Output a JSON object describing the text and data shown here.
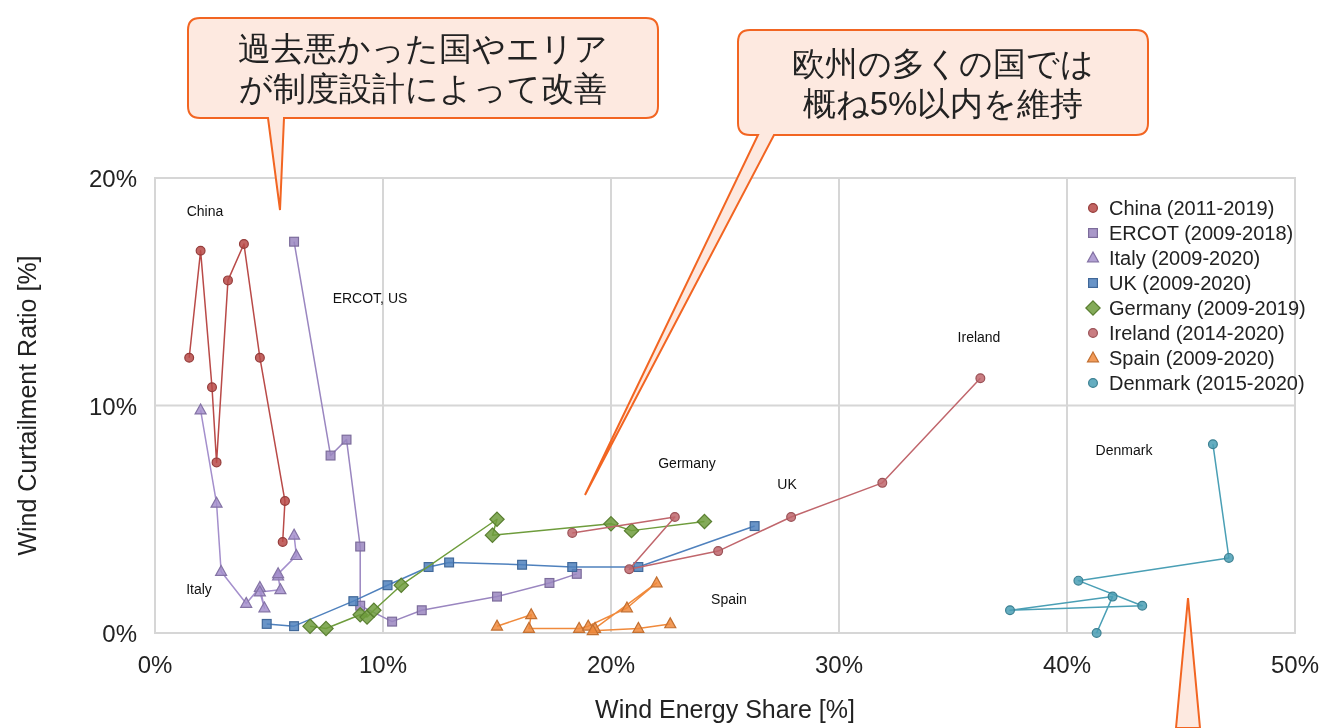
{
  "chart_data": {
    "type": "line",
    "xlabel": "Wind Energy Share [%]",
    "ylabel": "Wind Curtailment Ratio [%]",
    "xlim": [
      0,
      50
    ],
    "xticks": [
      {
        "value": 0,
        "label": "0%"
      },
      {
        "value": 10,
        "label": "10%"
      },
      {
        "value": 20,
        "label": "20%"
      },
      {
        "value": 30,
        "label": "30%"
      },
      {
        "value": 40,
        "label": "40%"
      },
      {
        "value": 50,
        "label": "50%"
      }
    ],
    "ylim": [
      0,
      20
    ],
    "yticks": [
      {
        "value": 0,
        "label": "0%"
      },
      {
        "value": 10,
        "label": "10%"
      },
      {
        "value": 20,
        "label": "20%"
      }
    ],
    "grid": true,
    "legend": "top right",
    "series": [
      {
        "name": "China (2011-2019)",
        "color": "#b94a48",
        "marker": "circle",
        "x": [
          1.5,
          2.0,
          2.5,
          2.7,
          3.2,
          3.9,
          4.6,
          5.7,
          5.6
        ],
        "values": [
          12.1,
          16.8,
          10.8,
          7.5,
          15.5,
          17.1,
          12.1,
          5.8,
          4.0
        ]
      },
      {
        "name": "ERCOT (2009-2018)",
        "color": "#9a86c0",
        "marker": "square",
        "x": [
          6.1,
          7.7,
          8.4,
          9.0,
          9.0,
          10.4,
          11.7,
          15.0,
          17.3,
          18.5
        ],
        "values": [
          17.2,
          7.8,
          8.5,
          3.8,
          1.2,
          0.5,
          1.0,
          1.6,
          2.2,
          2.6
        ]
      },
      {
        "name": "Italy (2009-2020)",
        "color": "#a48fcc",
        "marker": "triangle",
        "x": [
          2.0,
          2.7,
          2.9,
          4.0,
          4.6,
          4.8,
          4.6,
          5.5,
          5.4,
          5.4,
          6.2,
          6.1
        ],
        "values": [
          9.8,
          5.7,
          2.7,
          1.3,
          2.0,
          1.1,
          1.8,
          1.9,
          2.5,
          2.6,
          3.4,
          4.3
        ]
      },
      {
        "name": "UK (2009-2020)",
        "color": "#4f81bd",
        "marker": "square",
        "x": [
          4.9,
          6.1,
          8.7,
          10.2,
          12.0,
          12.9,
          16.1,
          18.3,
          21.2,
          26.3
        ],
        "values": [
          0.4,
          0.3,
          1.4,
          2.1,
          2.9,
          3.1,
          3.0,
          2.9,
          2.9,
          4.7
        ]
      },
      {
        "name": "Germany (2009-2019)",
        "color": "#6e9c3c",
        "marker": "diamond",
        "x": [
          6.8,
          7.5,
          9.0,
          9.3,
          9.6,
          10.8,
          15.0,
          14.8,
          20.0,
          20.9,
          24.1
        ],
        "values": [
          0.3,
          0.2,
          0.8,
          0.7,
          1.0,
          2.1,
          5.0,
          4.3,
          4.8,
          4.5,
          4.9
        ]
      },
      {
        "name": "Ireland (2014-2020)",
        "color": "#c0666c",
        "marker": "circle",
        "x": [
          18.3,
          22.8,
          20.8,
          24.7,
          27.9,
          31.9,
          36.2
        ],
        "values": [
          4.4,
          5.1,
          2.8,
          3.6,
          5.1,
          6.6,
          11.2
        ]
      },
      {
        "name": "Spain (2009-2020)",
        "color": "#f08a3c",
        "marker": "triangle",
        "x": [
          15.0,
          16.5,
          16.4,
          18.6,
          19.0,
          20.7,
          22.0,
          19.3,
          19.2,
          21.2,
          22.6
        ],
        "values": [
          0.3,
          0.8,
          0.2,
          0.2,
          0.3,
          1.1,
          2.2,
          0.2,
          0.1,
          0.2,
          0.4
        ]
      },
      {
        "name": "Denmark (2015-2020)",
        "color": "#4a9fb5",
        "marker": "circle",
        "x": [
          46.4,
          47.1,
          40.5,
          43.3,
          37.5,
          42.0,
          41.3
        ],
        "values": [
          8.3,
          3.3,
          2.3,
          1.2,
          1.0,
          1.6,
          0.0
        ]
      }
    ],
    "annotations": [
      "China",
      "ERCOT, US",
      "Italy",
      "Germany",
      "UK",
      "Ireland",
      "Spain",
      "Denmark",
      "過去悪かった国やエリアが制度設計によって改善",
      "欧州の多くの国では概ね5%以内を維持"
    ]
  }
}
